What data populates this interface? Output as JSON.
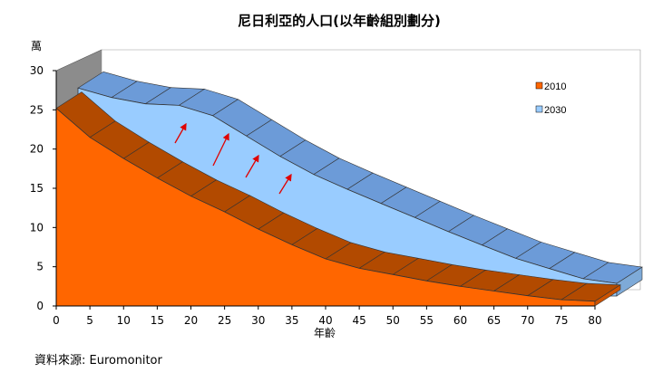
{
  "chart_data": {
    "type": "area",
    "title": "尼日利亞的人口(以年齡組別劃分)",
    "ylabel": "萬",
    "xlabel": "年齡",
    "x": [
      0,
      5,
      10,
      15,
      20,
      25,
      30,
      35,
      40,
      45,
      50,
      55,
      60,
      65,
      70,
      75,
      80
    ],
    "ylim": [
      0,
      30
    ],
    "yticks": [
      0,
      5,
      10,
      15,
      20,
      25,
      30
    ],
    "series": [
      {
        "name": "2010",
        "color": "#FF6600",
        "values": [
          25.2,
          21.5,
          18.8,
          16.3,
          14.0,
          12.0,
          9.8,
          7.8,
          6.0,
          4.8,
          4.0,
          3.2,
          2.5,
          1.9,
          1.3,
          0.8,
          0.6
        ]
      },
      {
        "name": "2030",
        "color": "#99CCFF",
        "values": [
          26.5,
          25.3,
          24.5,
          24.3,
          23.0,
          20.4,
          17.8,
          15.5,
          13.6,
          11.8,
          10.0,
          8.2,
          6.5,
          4.8,
          3.5,
          2.2,
          1.6
        ]
      }
    ],
    "legend_position": "right",
    "grid": false
  },
  "source_text": "資料來源: Euromonitor"
}
